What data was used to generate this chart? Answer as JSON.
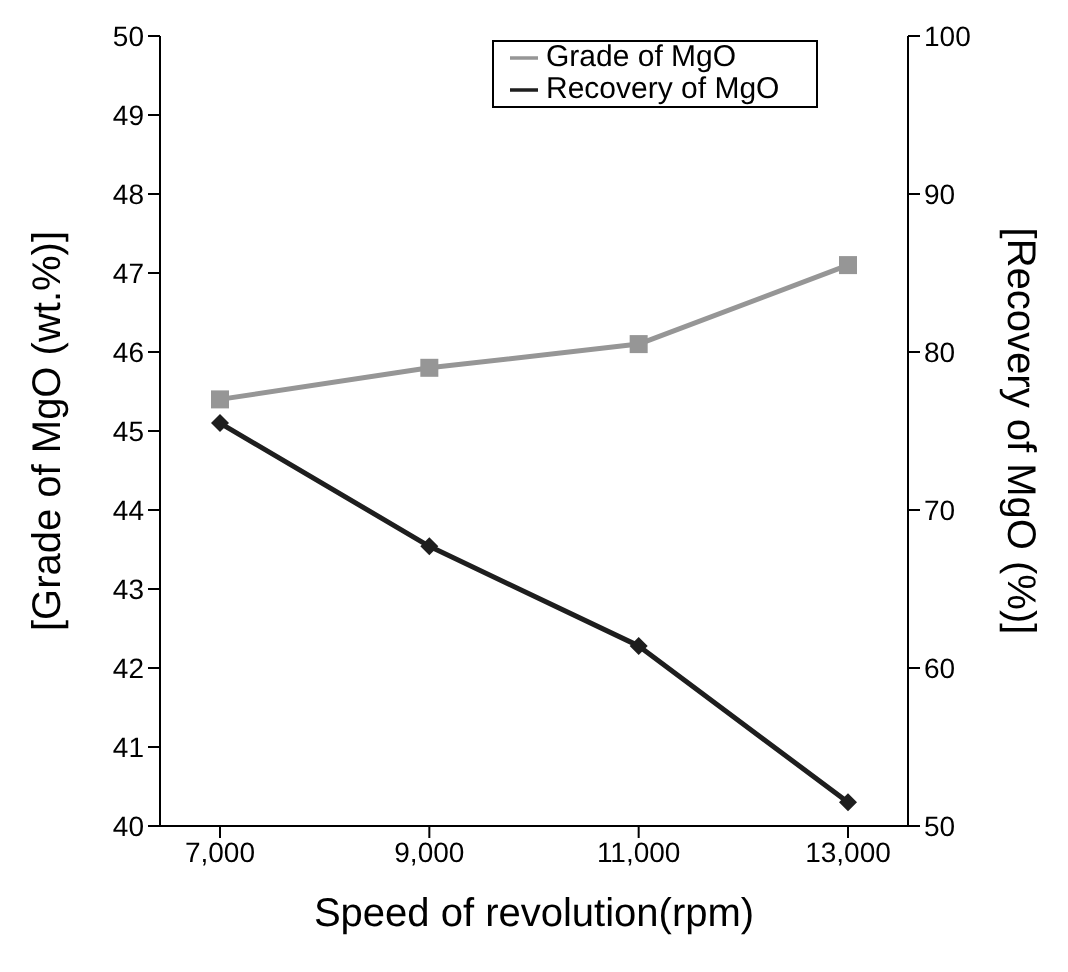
{
  "chart_data": {
    "type": "line",
    "xlabel": "Speed of revolution(rpm)",
    "ylabel": "[Grade of MgO (wt.%)]",
    "y2label": "[Recovery of MgO (%)]",
    "categories": [
      "7,000",
      "9,000",
      "11,000",
      "13,000"
    ],
    "series": [
      {
        "name": "Grade of MgO",
        "color": "#969696",
        "values": [
          45.4,
          45.8,
          46.1,
          47.1
        ],
        "marker": "square"
      },
      {
        "name": "Recovery of MgO",
        "color": "#1e1e1e",
        "values": [
          75.5,
          67.7,
          61.4,
          51.5
        ],
        "marker": "diamond",
        "axis": "y2"
      }
    ],
    "ylim": [
      40,
      50
    ],
    "yticks": [
      40,
      41,
      42,
      43,
      44,
      45,
      46,
      47,
      48,
      49,
      50
    ],
    "y2lim": [
      50,
      100
    ],
    "y2ticks": [
      50,
      60,
      70,
      80,
      90,
      100
    ],
    "legend": "top right",
    "grid": false,
    "line_style": "solid"
  }
}
